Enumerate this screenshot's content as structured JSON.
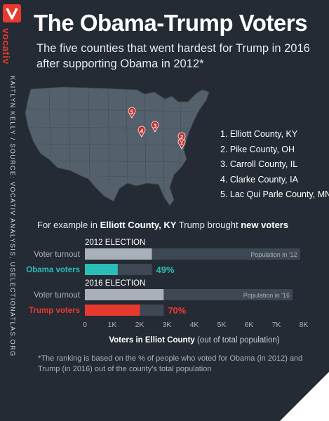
{
  "brand": {
    "name": "vocativ",
    "logo_letter": "V",
    "credit": "KAITLYN KELLY / SOURCE: VOCATIV ANALYSIS, USELECTIONATLAS.ORG"
  },
  "header": {
    "title": "The Obama-Trump Voters",
    "subtitle": "The five counties that went hardest for Trump in 2016 after supporting Obama in 2012*"
  },
  "map": {
    "markers": [
      {
        "label": "1",
        "county": "Elliott County, KY"
      },
      {
        "label": "2",
        "county": "Pike County, OH"
      },
      {
        "label": "3",
        "county": "Carroll County, IL"
      },
      {
        "label": "4",
        "county": "Clarke County, IA"
      },
      {
        "label": "5",
        "county": "Lac Qui Parle County, MN"
      }
    ],
    "legend": [
      "1. Elliott County, KY",
      "2. Pike County, OH",
      "3. Carroll County, IL",
      "4. Clarke County, IA",
      "5. Lac Qui Parle County, MN"
    ],
    "marker_color": "#c62a22"
  },
  "example": {
    "prefix": "For example in ",
    "county": "Elliott County, KY",
    "middle": " Trump brought ",
    "emph": "new voters"
  },
  "chart_data": {
    "type": "bar",
    "orientation": "horizontal",
    "xlabel_bold": "Voters in Elliot County",
    "xlabel_rest": " (out of total population)",
    "xlim": [
      0,
      8000
    ],
    "ticks": [
      0,
      1000,
      2000,
      3000,
      4000,
      5000,
      6000,
      7000,
      8000
    ],
    "tick_labels": [
      "0",
      "1K",
      "2K",
      "3K",
      "4K",
      "5K",
      "6K",
      "7K",
      "8K"
    ],
    "groups": [
      {
        "title": "2012 ELECTION",
        "population_label": "Population in '12",
        "population": 7860,
        "rows": [
          {
            "label": "Voter turnout",
            "value": 2450,
            "color": "#a8b0b9",
            "label_color": "#a8b0b9"
          },
          {
            "label": "Obama voters",
            "value": 1200,
            "pct_label": "49%",
            "color": "#2bbdb8",
            "label_color": "#2bbdb8"
          }
        ]
      },
      {
        "title": "2016 ELECTION",
        "population_label": "Population in '16",
        "population": 7590,
        "rows": [
          {
            "label": "Voter turnout",
            "value": 2880,
            "color": "#a8b0b9",
            "label_color": "#a8b0b9"
          },
          {
            "label": "Trump voters",
            "value": 2010,
            "pct_label": "70%",
            "color": "#e8392e",
            "label_color": "#e8392e"
          }
        ]
      }
    ],
    "colors": {
      "population": "#3e4754",
      "turnout": "#a8b0b9",
      "obama": "#2bbdb8",
      "trump": "#e8392e"
    }
  },
  "footnote": "*The ranking is based on the % of people who voted for Obama (in 2012) and Trump (in 2016) out of the county's total population"
}
